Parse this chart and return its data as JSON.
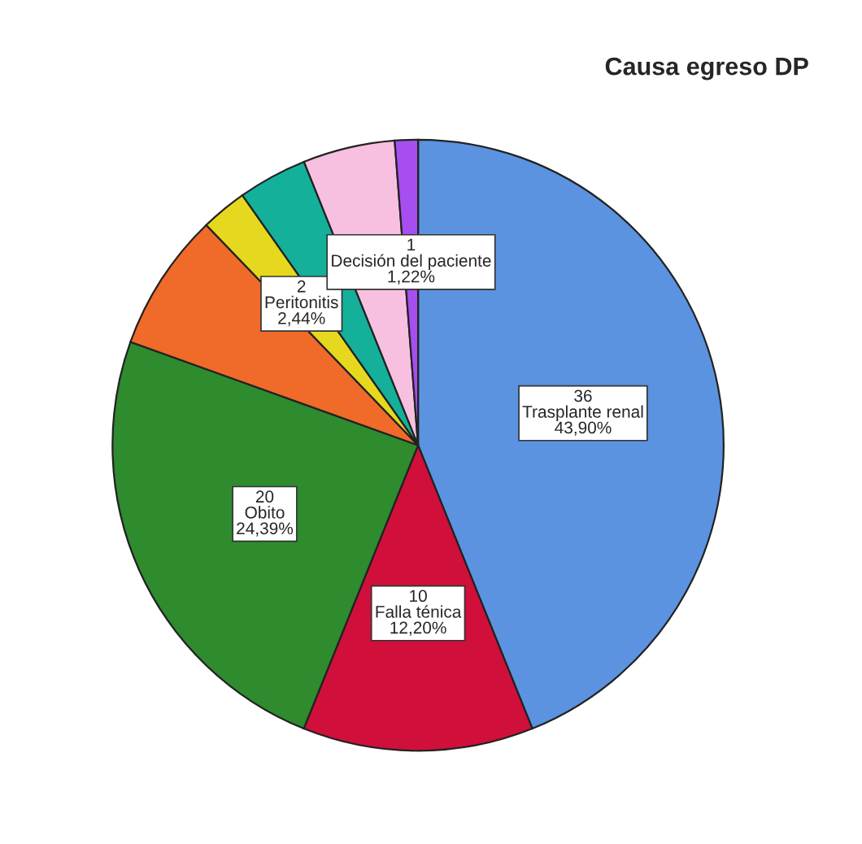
{
  "chart_data": {
    "type": "pie",
    "title": "Causa egreso DP",
    "categories": [
      "Trasplante renal",
      "Falla ténica",
      "Obito",
      null,
      "Peritonitis",
      null,
      null,
      "Decisión del paciente"
    ],
    "values": [
      43.9,
      12.2,
      24.39,
      7.32,
      2.44,
      3.66,
      4.87,
      1.22
    ],
    "value_labels": [
      "36\n43,90%",
      "10\n12,20%",
      "20\n24,39%",
      null,
      "2\n2,44%",
      null,
      null,
      "1\n1,22%"
    ],
    "colors": [
      "#5b93e0",
      "#d0103a",
      "#2e8b2e",
      "#f06a2a",
      "#e6d81e",
      "#14b09a",
      "#f8c0e0",
      "#a64ef0"
    ]
  }
}
